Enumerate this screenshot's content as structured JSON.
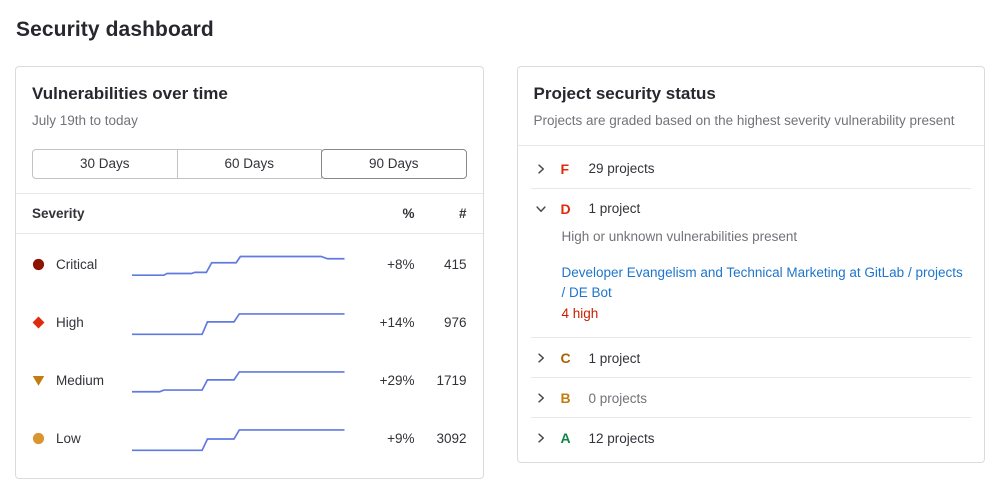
{
  "page": {
    "title": "Security dashboard"
  },
  "colors": {
    "sparkline": "#617ae2",
    "link_blue": "#1f75cb",
    "danger_red": "#dd2b0e"
  },
  "vulnerabilities": {
    "title": "Vulnerabilities over time",
    "subtitle": "July 19th to today",
    "ranges": [
      {
        "label": "30 Days",
        "selected": false
      },
      {
        "label": "60 Days",
        "selected": false
      },
      {
        "label": "90 Days",
        "selected": true
      }
    ],
    "table_header": {
      "severity": "Severity",
      "percent": "%",
      "count": "#"
    },
    "line_color": "#617ae2",
    "rows": [
      {
        "severity": "Critical",
        "icon": "critical-severity-icon",
        "color": "#8d1300",
        "percent": "+8%",
        "count": "415",
        "sparkline": [
          [
            0,
            24
          ],
          [
            15,
            24
          ],
          [
            16.5,
            22.5
          ],
          [
            28,
            22.5
          ],
          [
            29.5,
            21.5
          ],
          [
            35,
            21.5
          ],
          [
            37.5,
            13
          ],
          [
            49,
            13
          ],
          [
            51,
            7.5
          ],
          [
            89,
            7.5
          ],
          [
            92,
            9.5
          ],
          [
            100,
            9.5
          ]
        ]
      },
      {
        "severity": "High",
        "icon": "high-severity-icon",
        "color": "#dd2b0e",
        "percent": "+14%",
        "count": "976",
        "sparkline": [
          [
            0,
            25
          ],
          [
            33,
            25
          ],
          [
            35.5,
            14
          ],
          [
            48,
            14
          ],
          [
            50.5,
            7
          ],
          [
            100,
            7
          ]
        ]
      },
      {
        "severity": "Medium",
        "icon": "medium-severity-icon",
        "color": "#c17d10",
        "percent": "+29%",
        "count": "1719",
        "sparkline": [
          [
            0,
            24.5
          ],
          [
            13,
            24.5
          ],
          [
            15,
            23
          ],
          [
            33,
            23
          ],
          [
            35.5,
            14
          ],
          [
            48,
            14
          ],
          [
            50.5,
            7
          ],
          [
            100,
            7
          ]
        ]
      },
      {
        "severity": "Low",
        "icon": "low-severity-icon",
        "color": "#d99530",
        "percent": "+9%",
        "count": "3092",
        "sparkline": [
          [
            0,
            25
          ],
          [
            33,
            25
          ],
          [
            35.5,
            15
          ],
          [
            48,
            15
          ],
          [
            50.5,
            7
          ],
          [
            100,
            7
          ]
        ]
      }
    ]
  },
  "project_status": {
    "title": "Project security status",
    "subtitle": "Projects are graded based on the highest severity vulnerability present",
    "grades": [
      {
        "letter": "F",
        "color": "#dd2b0e",
        "count_label": "29 projects",
        "expanded": false,
        "muted": false
      },
      {
        "letter": "D",
        "color": "#dd2b0e",
        "count_label": "1 project",
        "expanded": true,
        "muted": false,
        "description": "High or unknown vulnerabilities present",
        "projects": [
          {
            "link": "Developer Evangelism and Technical Marketing at GitLab / projects / DE Bot",
            "badge": "4 high",
            "badge_color": "#c91c00"
          }
        ]
      },
      {
        "letter": "C",
        "color": "#ab6100",
        "count_label": "1 project",
        "expanded": false,
        "muted": false
      },
      {
        "letter": "B",
        "color": "#c17d10",
        "count_label": "0 projects",
        "expanded": false,
        "muted": true
      },
      {
        "letter": "A",
        "color": "#108548",
        "count_label": "12 projects",
        "expanded": false,
        "muted": false
      }
    ]
  }
}
